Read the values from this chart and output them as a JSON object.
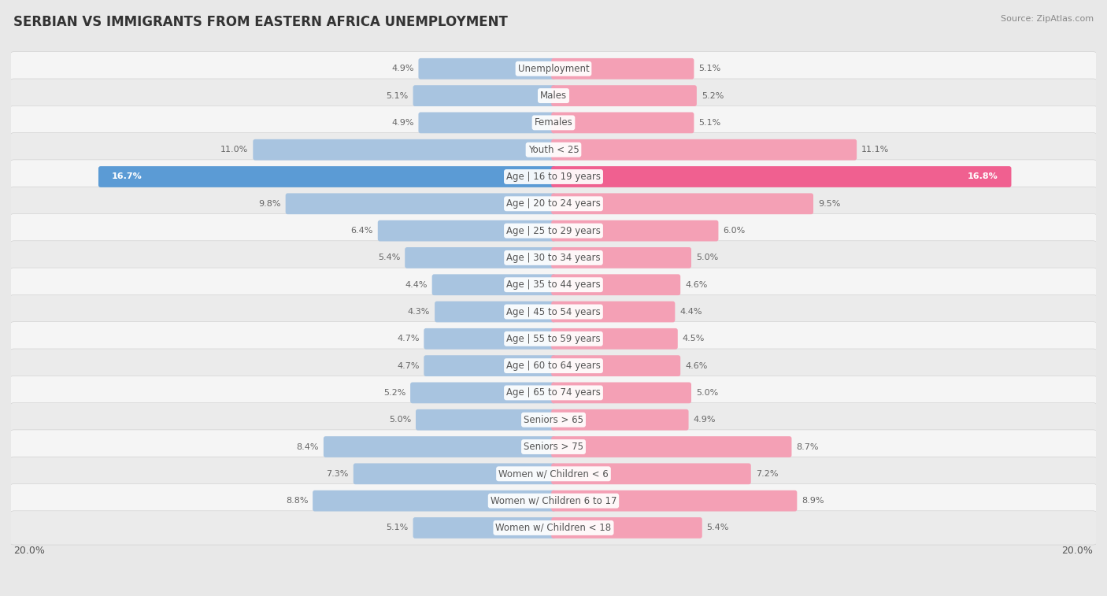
{
  "title": "SERBIAN VS IMMIGRANTS FROM EASTERN AFRICA UNEMPLOYMENT",
  "source": "Source: ZipAtlas.com",
  "categories": [
    "Unemployment",
    "Males",
    "Females",
    "Youth < 25",
    "Age | 16 to 19 years",
    "Age | 20 to 24 years",
    "Age | 25 to 29 years",
    "Age | 30 to 34 years",
    "Age | 35 to 44 years",
    "Age | 45 to 54 years",
    "Age | 55 to 59 years",
    "Age | 60 to 64 years",
    "Age | 65 to 74 years",
    "Seniors > 65",
    "Seniors > 75",
    "Women w/ Children < 6",
    "Women w/ Children 6 to 17",
    "Women w/ Children < 18"
  ],
  "serbian": [
    4.9,
    5.1,
    4.9,
    11.0,
    16.7,
    9.8,
    6.4,
    5.4,
    4.4,
    4.3,
    4.7,
    4.7,
    5.2,
    5.0,
    8.4,
    7.3,
    8.8,
    5.1
  ],
  "eastern_africa": [
    5.1,
    5.2,
    5.1,
    11.1,
    16.8,
    9.5,
    6.0,
    5.0,
    4.6,
    4.4,
    4.5,
    4.6,
    5.0,
    4.9,
    8.7,
    7.2,
    8.9,
    5.4
  ],
  "serbian_color": "#a8c4e0",
  "eastern_africa_color": "#f4a0b5",
  "highlight_serbian_color": "#5b9bd5",
  "highlight_eastern_color": "#f06090",
  "background_color": "#e8e8e8",
  "row_bg_light": "#f5f5f5",
  "row_bg_dark": "#ebebeb",
  "axis_limit": 20.0,
  "label_fontsize": 8.5,
  "title_fontsize": 12,
  "value_fontsize": 8,
  "source_fontsize": 8
}
